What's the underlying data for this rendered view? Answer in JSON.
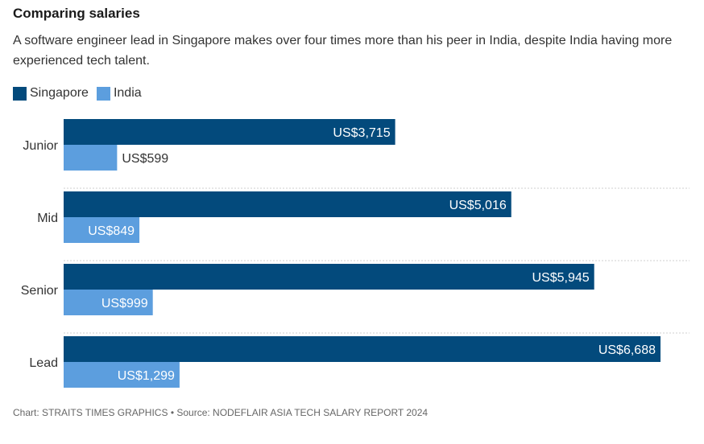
{
  "title": "Comparing salaries",
  "subtitle": "A software engineer lead in Singapore makes over four times more than his peer in India, despite India having more experienced tech talent.",
  "footer": "Chart: STRAITS TIMES GRAPHICS • Source: NODEFLAIR ASIA TECH SALARY REPORT 2024",
  "colors": {
    "singapore": "#034A7C",
    "india": "#5C9EDE"
  },
  "legend": [
    {
      "label": "Singapore",
      "color": "#034A7C"
    },
    {
      "label": "India",
      "color": "#5C9EDE"
    }
  ],
  "chart_data": {
    "type": "bar",
    "orientation": "horizontal",
    "categories": [
      "Junior",
      "Mid",
      "Senior",
      "Lead"
    ],
    "series": [
      {
        "name": "Singapore",
        "values": [
          3715,
          5016,
          5945,
          6688
        ],
        "labels": [
          "US$3,715",
          "US$5,016",
          "US$5,945",
          "US$6,688"
        ]
      },
      {
        "name": "India",
        "values": [
          599,
          849,
          999,
          1299
        ],
        "labels": [
          "US$599",
          "US$849",
          "US$999",
          "US$1,299"
        ]
      }
    ],
    "xlim": [
      0,
      6688
    ],
    "grid": false,
    "legend_position": "top-left"
  }
}
